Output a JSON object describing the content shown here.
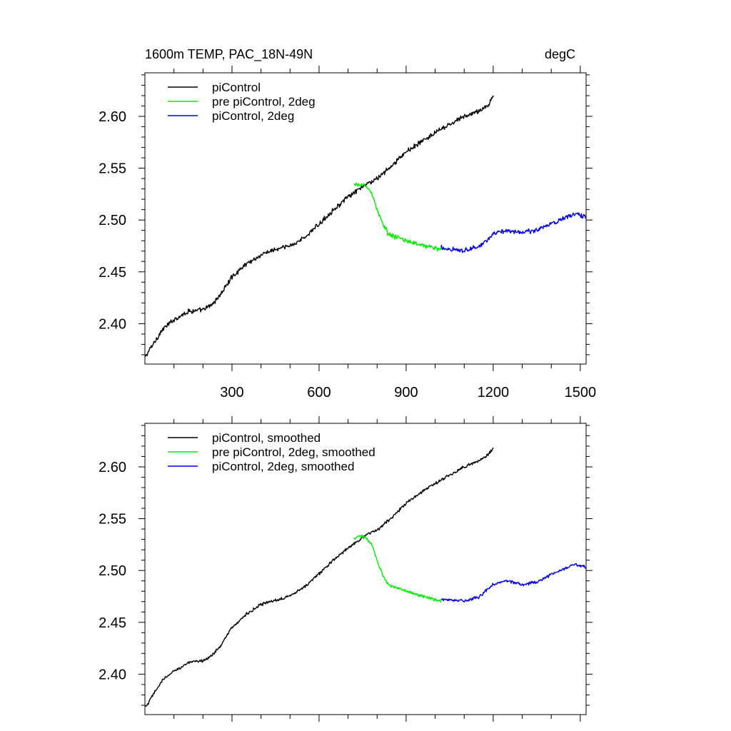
{
  "figure": {
    "title_left": "1600m TEMP, PAC_18N-49N",
    "title_right": "degC"
  },
  "chart_data": [
    {
      "type": "line",
      "panel": "top",
      "title": "1600m TEMP, PAC_18N-49N",
      "units": "degC",
      "xlim": [
        0,
        1520
      ],
      "ylim": [
        2.361,
        2.642
      ],
      "xticks": [
        300,
        600,
        900,
        1200,
        1500
      ],
      "xtick_labels": [
        "300",
        "600",
        "900",
        "1200",
        "1500"
      ],
      "yticks": [
        2.4,
        2.45,
        2.5,
        2.55,
        2.6
      ],
      "ytick_labels": [
        "2.40",
        "2.45",
        "2.50",
        "2.55",
        "2.60"
      ],
      "legend_position": "top-left",
      "series": [
        {
          "name": "piControl",
          "color": "#000000",
          "x": [
            0,
            10,
            30,
            60,
            100,
            150,
            200,
            230,
            260,
            300,
            350,
            400,
            430,
            460,
            500,
            550,
            600,
            650,
            700,
            740,
            760,
            800,
            850,
            900,
            950,
            1000,
            1050,
            1100,
            1150,
            1180,
            1200
          ],
          "y": [
            2.367,
            2.372,
            2.381,
            2.394,
            2.404,
            2.412,
            2.413,
            2.418,
            2.428,
            2.445,
            2.458,
            2.466,
            2.47,
            2.472,
            2.475,
            2.483,
            2.496,
            2.51,
            2.522,
            2.53,
            2.534,
            2.54,
            2.552,
            2.566,
            2.575,
            2.584,
            2.592,
            2.6,
            2.605,
            2.61,
            2.62
          ]
        },
        {
          "name": "pre piControl, 2deg",
          "color": "#00ee00",
          "x": [
            720,
            740,
            760,
            780,
            800,
            820,
            840,
            860,
            900,
            950,
            1000,
            1020
          ],
          "y": [
            2.533,
            2.534,
            2.533,
            2.527,
            2.51,
            2.496,
            2.486,
            2.484,
            2.48,
            2.476,
            2.473,
            2.471
          ]
        },
        {
          "name": "piControl, 2deg",
          "color": "#0000ee",
          "x": [
            1020,
            1050,
            1100,
            1150,
            1200,
            1250,
            1300,
            1350,
            1400,
            1450,
            1480,
            1500,
            1520
          ],
          "y": [
            2.473,
            2.472,
            2.471,
            2.474,
            2.486,
            2.49,
            2.488,
            2.49,
            2.497,
            2.502,
            2.506,
            2.505,
            2.503
          ]
        }
      ]
    },
    {
      "type": "line",
      "panel": "bottom",
      "xlim": [
        0,
        1520
      ],
      "ylim": [
        2.361,
        2.642
      ],
      "xticks": [
        300,
        600,
        900,
        1200,
        1500
      ],
      "yticks": [
        2.4,
        2.45,
        2.5,
        2.55,
        2.6
      ],
      "ytick_labels": [
        "2.40",
        "2.45",
        "2.50",
        "2.55",
        "2.60"
      ],
      "legend_position": "top-left",
      "series": [
        {
          "name": "piControl, smoothed",
          "color": "#000000",
          "x": [
            0,
            10,
            30,
            60,
            100,
            150,
            200,
            230,
            260,
            300,
            350,
            400,
            430,
            460,
            500,
            550,
            600,
            650,
            700,
            740,
            760,
            800,
            850,
            900,
            950,
            1000,
            1050,
            1100,
            1150,
            1180,
            1200
          ],
          "y": [
            2.368,
            2.371,
            2.381,
            2.394,
            2.403,
            2.411,
            2.413,
            2.418,
            2.427,
            2.445,
            2.458,
            2.467,
            2.47,
            2.472,
            2.476,
            2.484,
            2.497,
            2.51,
            2.522,
            2.53,
            2.534,
            2.539,
            2.551,
            2.565,
            2.575,
            2.584,
            2.592,
            2.6,
            2.606,
            2.611,
            2.618
          ]
        },
        {
          "name": "pre piControl, 2deg, smoothed",
          "color": "#00ee00",
          "x": [
            720,
            740,
            760,
            780,
            800,
            820,
            840,
            860,
            900,
            950,
            1000,
            1020
          ],
          "y": [
            2.531,
            2.534,
            2.532,
            2.526,
            2.509,
            2.495,
            2.486,
            2.484,
            2.48,
            2.476,
            2.472,
            2.47
          ]
        },
        {
          "name": "piControl, 2deg, smoothed",
          "color": "#0000ee",
          "x": [
            1020,
            1050,
            1100,
            1150,
            1200,
            1250,
            1300,
            1350,
            1400,
            1450,
            1480,
            1500,
            1520
          ],
          "y": [
            2.472,
            2.472,
            2.471,
            2.474,
            2.487,
            2.49,
            2.486,
            2.489,
            2.496,
            2.502,
            2.506,
            2.505,
            2.503
          ]
        }
      ]
    }
  ]
}
